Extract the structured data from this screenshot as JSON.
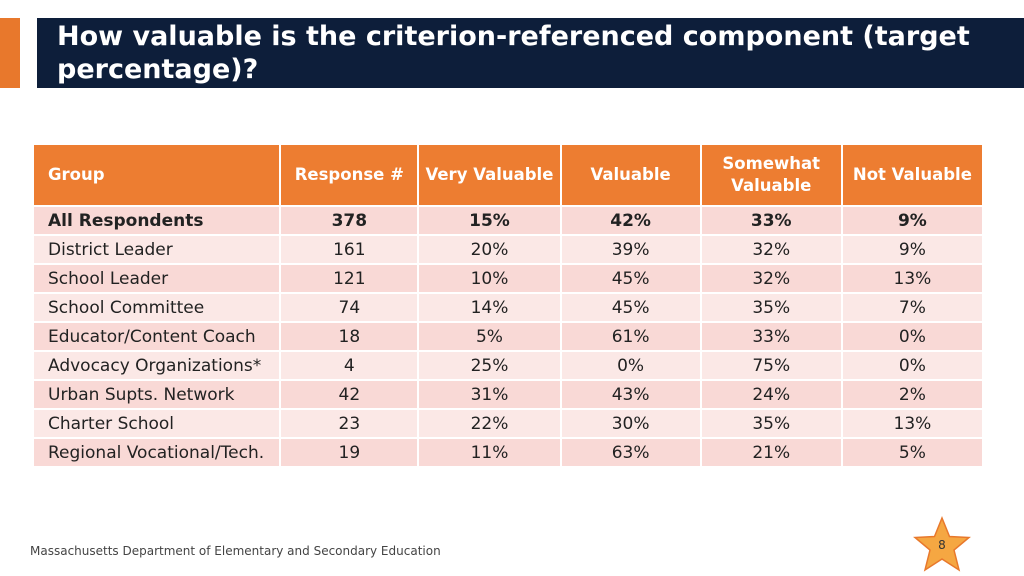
{
  "slide": {
    "title": "How valuable is the criterion-referenced component (target percentage)?",
    "footer": "Massachusetts Department of Elementary and Secondary Education",
    "page_number": "8",
    "colors": {
      "title_bg": "#0d1e3a",
      "accent": "#e8782c",
      "header": "#ed7d31",
      "row_a": "#f9d9d6",
      "row_b": "#fbe8e6"
    }
  },
  "table": {
    "headers": [
      "Group",
      "Response #",
      "Very Valuable",
      "Valuable",
      "Somewhat Valuable",
      "Not Valuable"
    ],
    "rows": [
      [
        "All Respondents",
        "378",
        "15%",
        "42%",
        "33%",
        "9%"
      ],
      [
        "District Leader",
        "161",
        "20%",
        "39%",
        "32%",
        "9%"
      ],
      [
        "School Leader",
        "121",
        "10%",
        "45%",
        "32%",
        "13%"
      ],
      [
        "School Committee",
        "74",
        "14%",
        "45%",
        "35%",
        "7%"
      ],
      [
        "Educator/Content Coach",
        "18",
        "5%",
        "61%",
        "33%",
        "0%"
      ],
      [
        "Advocacy Organizations*",
        "4",
        "25%",
        "0%",
        "75%",
        "0%"
      ],
      [
        "Urban Supts. Network",
        "42",
        "31%",
        "43%",
        "24%",
        "2%"
      ],
      [
        "Charter School",
        "23",
        "22%",
        "30%",
        "35%",
        "13%"
      ],
      [
        "Regional Vocational/Tech.",
        "19",
        "11%",
        "63%",
        "21%",
        "5%"
      ]
    ]
  }
}
